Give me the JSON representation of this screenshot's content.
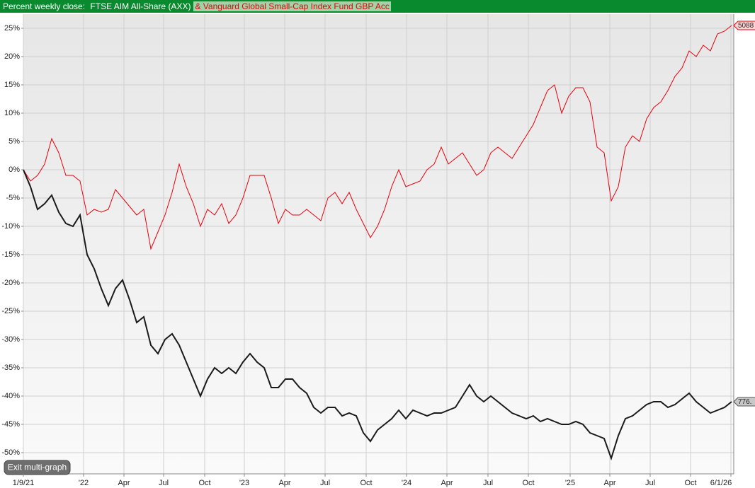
{
  "chart_data": {
    "type": "line",
    "title": "Percent weekly close:",
    "xlim": [
      0,
      100.3
    ],
    "xticks": [
      {
        "value": 0,
        "label": "1/9/21"
      },
      {
        "value": 8.5,
        "label": "'22"
      },
      {
        "value": 14.2,
        "label": "Apr"
      },
      {
        "value": 19.8,
        "label": "Jul"
      },
      {
        "value": 25.6,
        "label": "Oct"
      },
      {
        "value": 31.2,
        "label": "'23"
      },
      {
        "value": 36.9,
        "label": "Apr"
      },
      {
        "value": 42.6,
        "label": "Jul"
      },
      {
        "value": 48.4,
        "label": "Oct"
      },
      {
        "value": 54.1,
        "label": "'24"
      },
      {
        "value": 59.8,
        "label": "Apr"
      },
      {
        "value": 65.6,
        "label": "Jul"
      },
      {
        "value": 71.3,
        "label": "Oct"
      },
      {
        "value": 77.2,
        "label": "'25"
      },
      {
        "value": 82.8,
        "label": "Apr"
      },
      {
        "value": 88.5,
        "label": "Jul"
      },
      {
        "value": 94.2,
        "label": "Oct"
      },
      {
        "value": 99.9,
        "label": "6/1/26"
      }
    ],
    "ylim": [
      -53.75,
      27.5
    ],
    "yticks": [
      {
        "value": 25,
        "label": "25%"
      },
      {
        "value": 20,
        "label": "20%"
      },
      {
        "value": 15,
        "label": "15%"
      },
      {
        "value": 10,
        "label": "10%"
      },
      {
        "value": 5,
        "label": "5%"
      },
      {
        "value": 0,
        "label": "0%"
      },
      {
        "value": -5,
        "label": "-5%"
      },
      {
        "value": -10,
        "label": "-10%"
      },
      {
        "value": -15,
        "label": "-15%"
      },
      {
        "value": -20,
        "label": "-20%"
      },
      {
        "value": -25,
        "label": "-25%"
      },
      {
        "value": -30,
        "label": "-30%"
      },
      {
        "value": -35,
        "label": "-35%"
      },
      {
        "value": -40,
        "label": "-40%"
      },
      {
        "value": -45,
        "label": "-45%"
      },
      {
        "value": -50,
        "label": "-50%"
      }
    ],
    "grid": true,
    "series": [
      {
        "name": "FTSE AIM All-Share (AXX)",
        "color": "#1a1a1a",
        "end_label": "776.",
        "values": [
          0,
          -3,
          -7,
          -6,
          -4.5,
          -7.5,
          -9.5,
          -10,
          -8,
          -15,
          -17.5,
          -21,
          -24,
          -21,
          -19.5,
          -23,
          -27,
          -26,
          -31,
          -32.5,
          -30,
          -29,
          -31,
          -34,
          -37,
          -40,
          -37,
          -35,
          -36,
          -35,
          -36,
          -34,
          -32.5,
          -34,
          -35,
          -38.5,
          -38.5,
          -37,
          -37,
          -38.5,
          -39.5,
          -42,
          -43,
          -42,
          -42,
          -43.5,
          -43,
          -43.5,
          -46.5,
          -48,
          -46,
          -45,
          -44,
          -42.5,
          -44,
          -42.5,
          -43,
          -43.5,
          -43,
          -43,
          -42.5,
          -42,
          -40,
          -38,
          -40,
          -41,
          -40,
          -41,
          -42,
          -43,
          -43.5,
          -44,
          -43.5,
          -44.5,
          -44,
          -44.5,
          -45,
          -45,
          -44.5,
          -45,
          -46.5,
          -47,
          -47.5,
          -51,
          -47,
          -44,
          -43.5,
          -42.5,
          -41.5,
          -41,
          -41,
          -42,
          -41.5,
          -40.5,
          -39.5,
          -41,
          -42,
          -43,
          -42.5,
          -42,
          -41
        ]
      },
      {
        "name": "& Vanguard Global Small-Cap Index Fund GBP Acc",
        "color": "#e8000b",
        "end_label": "5088",
        "values": [
          0,
          -2,
          -1,
          1,
          5.5,
          3,
          -1,
          -1,
          -2,
          -8,
          -7,
          -7.5,
          -7,
          -3.5,
          -5,
          -6.5,
          -8,
          -7,
          -14,
          -11,
          -8,
          -4,
          1,
          -3,
          -6,
          -10,
          -7,
          -8,
          -6,
          -9.5,
          -8,
          -5,
          -1,
          -1,
          -1,
          -5,
          -9.5,
          -7,
          -8,
          -8,
          -7,
          -8,
          -9,
          -5,
          -4,
          -6,
          -4,
          -7,
          -9.5,
          -12,
          -10,
          -7,
          -3,
          0,
          -3,
          -2.5,
          -2,
          0,
          1,
          4,
          1,
          2,
          3,
          1,
          -1,
          0,
          3,
          4,
          3,
          2,
          4,
          6,
          8,
          11,
          14,
          15,
          10,
          13,
          14.5,
          14.5,
          12,
          4,
          3,
          -5.5,
          -3,
          4,
          6,
          5,
          9,
          11,
          12,
          14,
          16.5,
          18,
          21,
          20,
          22,
          21,
          24,
          24.5,
          25.5
        ]
      }
    ]
  },
  "ui": {
    "button": "Exit multi-graph"
  }
}
